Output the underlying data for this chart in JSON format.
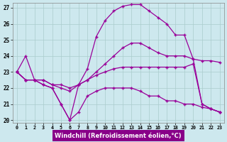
{
  "bg_color": "#cde8ee",
  "line_color": "#990099",
  "grid_color": "#aacccc",
  "xlabel": "Windchill (Refroidissement éolien,°C)",
  "xlabel_bg": "#880088",
  "xlim": [
    -0.5,
    23.5
  ],
  "ylim": [
    19.85,
    27.3
  ],
  "yticks": [
    20,
    21,
    22,
    23,
    24,
    25,
    26,
    27
  ],
  "xticks": [
    0,
    1,
    2,
    3,
    4,
    5,
    6,
    7,
    8,
    9,
    10,
    11,
    12,
    13,
    14,
    15,
    16,
    17,
    18,
    19,
    20,
    21,
    22,
    23
  ],
  "curves": [
    [
      23.0,
      24.0,
      22.5,
      22.5,
      22.2,
      22.2,
      22.0,
      22.2,
      22.5,
      23.0,
      23.5,
      24.0,
      24.5,
      24.8,
      24.8,
      24.5,
      24.2,
      24.0,
      24.0,
      24.0,
      23.8,
      23.7,
      23.7,
      23.6
    ],
    [
      23.0,
      22.5,
      22.5,
      22.5,
      22.2,
      22.0,
      21.8,
      22.2,
      22.5,
      22.8,
      23.0,
      23.2,
      23.3,
      23.3,
      23.3,
      23.3,
      23.3,
      23.3,
      23.3,
      23.3,
      23.5,
      21.0,
      20.7,
      20.5
    ],
    [
      23.0,
      22.5,
      22.5,
      22.2,
      22.0,
      21.0,
      20.0,
      20.5,
      21.5,
      21.8,
      22.0,
      22.0,
      22.0,
      22.0,
      21.8,
      21.5,
      21.5,
      21.2,
      21.2,
      21.0,
      21.0,
      20.8,
      20.7,
      20.5
    ],
    [
      23.0,
      22.5,
      22.5,
      22.2,
      22.0,
      21.0,
      20.0,
      22.2,
      23.2,
      25.2,
      26.2,
      26.8,
      27.1,
      27.2,
      27.2,
      26.8,
      26.4,
      26.0,
      25.3,
      25.3,
      23.8,
      21.0,
      20.7,
      20.5
    ]
  ]
}
